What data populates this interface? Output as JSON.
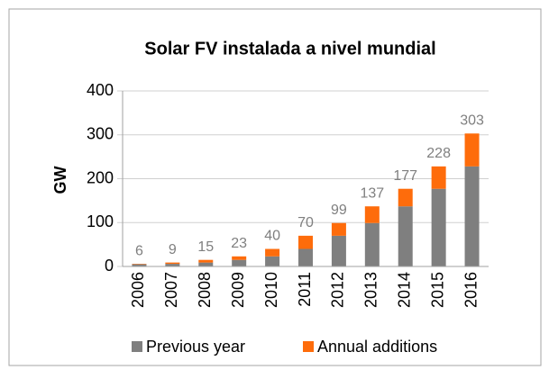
{
  "chart_data": {
    "type": "stacked_bar",
    "title": "Solar FV instalada a nivel mundial",
    "y_label": "GW",
    "categories": [
      "2006",
      "2007",
      "2008",
      "2009",
      "2010",
      "2011",
      "2012",
      "2013",
      "2014",
      "2015",
      "2016"
    ],
    "series": [
      {
        "name": "Previous year",
        "color": "#7f7f7f",
        "values": [
          5,
          6,
          9,
          15,
          23,
          40,
          70,
          99,
          137,
          177,
          228
        ]
      },
      {
        "name": "Annual additions",
        "color": "#fe6c0b",
        "values": [
          1,
          3,
          6,
          8,
          17,
          30,
          29,
          38,
          40,
          51,
          75
        ]
      }
    ],
    "total_labels": [
      6,
      9,
      15,
      23,
      40,
      70,
      99,
      137,
      177,
      228,
      303
    ],
    "ylim": [
      0,
      400
    ],
    "yticks": [
      0,
      100,
      200,
      300,
      400
    ],
    "grid": true
  }
}
